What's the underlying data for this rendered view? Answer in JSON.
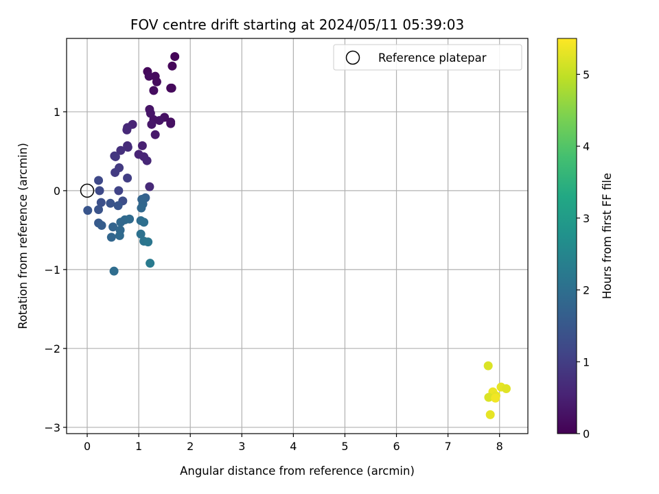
{
  "chart_data": {
    "type": "scatter",
    "title": "FOV centre drift starting at 2024/05/11 05:39:03",
    "xlabel": "Angular distance from reference (arcmin)",
    "ylabel": "Rotation from reference (arcmin)",
    "xlim": [
      -0.4,
      8.55
    ],
    "ylim": [
      -3.08,
      1.93
    ],
    "xticks": [
      0,
      1,
      2,
      3,
      4,
      5,
      6,
      7,
      8
    ],
    "xtick_labels": [
      "0",
      "1",
      "2",
      "3",
      "4",
      "5",
      "6",
      "7",
      "8"
    ],
    "yticks": [
      -3,
      -2,
      -1,
      0,
      1
    ],
    "ytick_labels": [
      "−3",
      "−2",
      "−1",
      "0",
      "1"
    ],
    "grid": true,
    "colormap": "viridis",
    "colorbar": {
      "label": "Hours from first FF file",
      "range": [
        0,
        5.5
      ],
      "ticks": [
        0,
        1,
        2,
        3,
        4,
        5
      ],
      "tick_labels": [
        "0",
        "1",
        "2",
        "3",
        "4",
        "5"
      ]
    },
    "legend": {
      "position": "top-right",
      "entries": [
        {
          "label": "Reference platepar",
          "marker": "open-circle",
          "color": "#000000"
        }
      ]
    },
    "reference_point": {
      "x": 0,
      "y": 0
    },
    "series": [
      {
        "points": [
          {
            "x": 1.7,
            "y": 1.7,
            "c": 0.05
          },
          {
            "x": 1.65,
            "y": 1.58,
            "c": 0.08
          },
          {
            "x": 1.17,
            "y": 1.51,
            "c": 0.12
          },
          {
            "x": 1.32,
            "y": 1.45,
            "c": 0.15
          },
          {
            "x": 1.2,
            "y": 1.45,
            "c": 0.18
          },
          {
            "x": 1.35,
            "y": 1.38,
            "c": 0.15
          },
          {
            "x": 1.62,
            "y": 1.3,
            "c": 0.1
          },
          {
            "x": 1.64,
            "y": 1.3,
            "c": 0.12
          },
          {
            "x": 1.29,
            "y": 1.27,
            "c": 0.18
          },
          {
            "x": 1.21,
            "y": 1.03,
            "c": 0.3
          },
          {
            "x": 1.23,
            "y": 0.98,
            "c": 0.32
          },
          {
            "x": 1.5,
            "y": 0.93,
            "c": 0.25
          },
          {
            "x": 1.29,
            "y": 0.9,
            "c": 0.28
          },
          {
            "x": 1.4,
            "y": 0.89,
            "c": 0.3
          },
          {
            "x": 1.62,
            "y": 0.87,
            "c": 0.22
          },
          {
            "x": 1.62,
            "y": 0.85,
            "c": 0.24
          },
          {
            "x": 1.25,
            "y": 0.84,
            "c": 0.35
          },
          {
            "x": 0.88,
            "y": 0.84,
            "c": 0.55
          },
          {
            "x": 0.78,
            "y": 0.8,
            "c": 0.62
          },
          {
            "x": 0.77,
            "y": 0.77,
            "c": 0.64
          },
          {
            "x": 1.32,
            "y": 0.71,
            "c": 0.38
          },
          {
            "x": 0.78,
            "y": 0.57,
            "c": 0.68
          },
          {
            "x": 1.07,
            "y": 0.57,
            "c": 0.5
          },
          {
            "x": 0.79,
            "y": 0.55,
            "c": 0.7
          },
          {
            "x": 0.65,
            "y": 0.51,
            "c": 0.75
          },
          {
            "x": 1.0,
            "y": 0.46,
            "c": 0.55
          },
          {
            "x": 0.53,
            "y": 0.44,
            "c": 0.85
          },
          {
            "x": 1.1,
            "y": 0.43,
            "c": 0.58
          },
          {
            "x": 0.55,
            "y": 0.43,
            "c": 0.88
          },
          {
            "x": 1.16,
            "y": 0.38,
            "c": 0.6
          },
          {
            "x": 0.62,
            "y": 0.29,
            "c": 0.92
          },
          {
            "x": 0.54,
            "y": 0.23,
            "c": 0.95
          },
          {
            "x": 0.78,
            "y": 0.16,
            "c": 1.0
          },
          {
            "x": 0.22,
            "y": 0.13,
            "c": 1.2
          },
          {
            "x": 1.21,
            "y": 0.05,
            "c": 0.65
          },
          {
            "x": 0.24,
            "y": 0.0,
            "c": 1.22
          },
          {
            "x": 0.61,
            "y": 0.0,
            "c": 1.1
          },
          {
            "x": 1.13,
            "y": -0.09,
            "c": 1.7
          },
          {
            "x": 1.06,
            "y": -0.11,
            "c": 1.75
          },
          {
            "x": 0.69,
            "y": -0.13,
            "c": 1.3
          },
          {
            "x": 0.27,
            "y": -0.15,
            "c": 1.35
          },
          {
            "x": 0.45,
            "y": -0.16,
            "c": 1.4
          },
          {
            "x": 1.08,
            "y": -0.17,
            "c": 1.8
          },
          {
            "x": 0.6,
            "y": -0.19,
            "c": 1.45
          },
          {
            "x": 1.05,
            "y": -0.22,
            "c": 1.85
          },
          {
            "x": 0.22,
            "y": -0.24,
            "c": 1.4
          },
          {
            "x": 0.01,
            "y": -0.25,
            "c": 1.45
          },
          {
            "x": 0.82,
            "y": -0.36,
            "c": 1.9
          },
          {
            "x": 0.73,
            "y": -0.37,
            "c": 1.9
          },
          {
            "x": 1.04,
            "y": -0.38,
            "c": 1.95
          },
          {
            "x": 0.65,
            "y": -0.4,
            "c": 1.85
          },
          {
            "x": 1.1,
            "y": -0.4,
            "c": 2.0
          },
          {
            "x": 0.22,
            "y": -0.41,
            "c": 1.55
          },
          {
            "x": 0.28,
            "y": -0.44,
            "c": 1.6
          },
          {
            "x": 0.5,
            "y": -0.46,
            "c": 1.75
          },
          {
            "x": 0.64,
            "y": -0.5,
            "c": 1.85
          },
          {
            "x": 1.04,
            "y": -0.55,
            "c": 2.05
          },
          {
            "x": 0.63,
            "y": -0.57,
            "c": 1.9
          },
          {
            "x": 0.47,
            "y": -0.59,
            "c": 1.8
          },
          {
            "x": 1.1,
            "y": -0.64,
            "c": 2.1
          },
          {
            "x": 1.18,
            "y": -0.65,
            "c": 2.15
          },
          {
            "x": 1.22,
            "y": -0.92,
            "c": 2.25
          },
          {
            "x": 0.52,
            "y": -1.02,
            "c": 1.95
          },
          {
            "x": 7.78,
            "y": -2.22,
            "c": 5.2
          },
          {
            "x": 8.03,
            "y": -2.49,
            "c": 5.3
          },
          {
            "x": 8.13,
            "y": -2.51,
            "c": 5.25
          },
          {
            "x": 7.87,
            "y": -2.55,
            "c": 5.35
          },
          {
            "x": 7.93,
            "y": -2.6,
            "c": 5.3
          },
          {
            "x": 7.79,
            "y": -2.62,
            "c": 5.2
          },
          {
            "x": 7.92,
            "y": -2.63,
            "c": 5.4
          },
          {
            "x": 7.82,
            "y": -2.84,
            "c": 5.3
          }
        ]
      }
    ]
  }
}
